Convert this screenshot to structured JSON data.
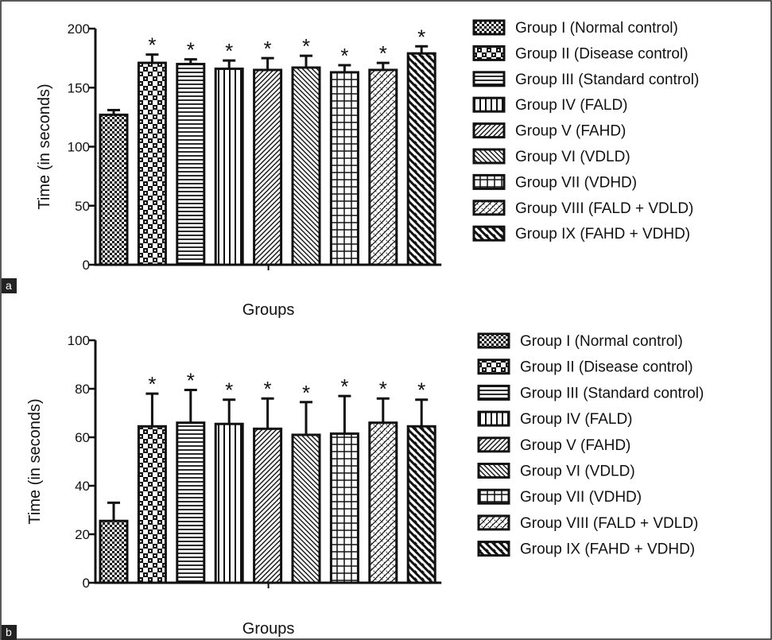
{
  "legend": [
    "Group I (Normal control)",
    "Group II (Disease control)",
    "Group III (Standard control)",
    "Group IV (FALD)",
    "Group V (FAHD)",
    "Group VI (VDLD)",
    "Group VII (VDHD)",
    "Group VIII (FALD + VDLD)",
    "Group IX (FAHD + VDHD)"
  ],
  "chart_data": [
    {
      "panel": "a",
      "type": "bar",
      "categories": [
        "Group I (Normal control)",
        "Group II (Disease control)",
        "Group III (Standard control)",
        "Group IV (FALD)",
        "Group V (FAHD)",
        "Group VI (VDLD)",
        "Group VII (VDHD)",
        "Group VIII (FALD + VDLD)",
        "Group IX (FAHD + VDHD)"
      ],
      "values": [
        127,
        171,
        170,
        166,
        165,
        167,
        163,
        165,
        179
      ],
      "errors": [
        4,
        7,
        4,
        7,
        10,
        10,
        6,
        6,
        6
      ],
      "significance": [
        "",
        "*",
        "*",
        "*",
        "*",
        "*",
        "*",
        "*",
        "*"
      ],
      "xlabel": "Groups",
      "ylabel": "Time (in seconds)",
      "ylim": [
        0,
        200
      ],
      "yticks": [
        0,
        50,
        100,
        150,
        200
      ],
      "legend_position": "right"
    },
    {
      "panel": "b",
      "type": "bar",
      "categories": [
        "Group I (Normal control)",
        "Group II (Disease control)",
        "Group III (Standard control)",
        "Group IV (FALD)",
        "Group V (FAHD)",
        "Group VI (VDLD)",
        "Group VII (VDHD)",
        "Group VIII (FALD + VDLD)",
        "Group IX (FAHD + VDHD)"
      ],
      "values": [
        25.5,
        64.5,
        66,
        65.5,
        63.5,
        61,
        61.5,
        66,
        64.5
      ],
      "errors": [
        7.5,
        13.5,
        13.5,
        10,
        12.5,
        13.5,
        15.5,
        10,
        11
      ],
      "significance": [
        "",
        "*",
        "*",
        "*",
        "*",
        "*",
        "*",
        "*",
        "*"
      ],
      "xlabel": "Groups",
      "ylabel": "Time (in seconds)",
      "ylim": [
        0,
        100
      ],
      "yticks": [
        0,
        20,
        40,
        60,
        80,
        100
      ],
      "legend_position": "right"
    }
  ]
}
